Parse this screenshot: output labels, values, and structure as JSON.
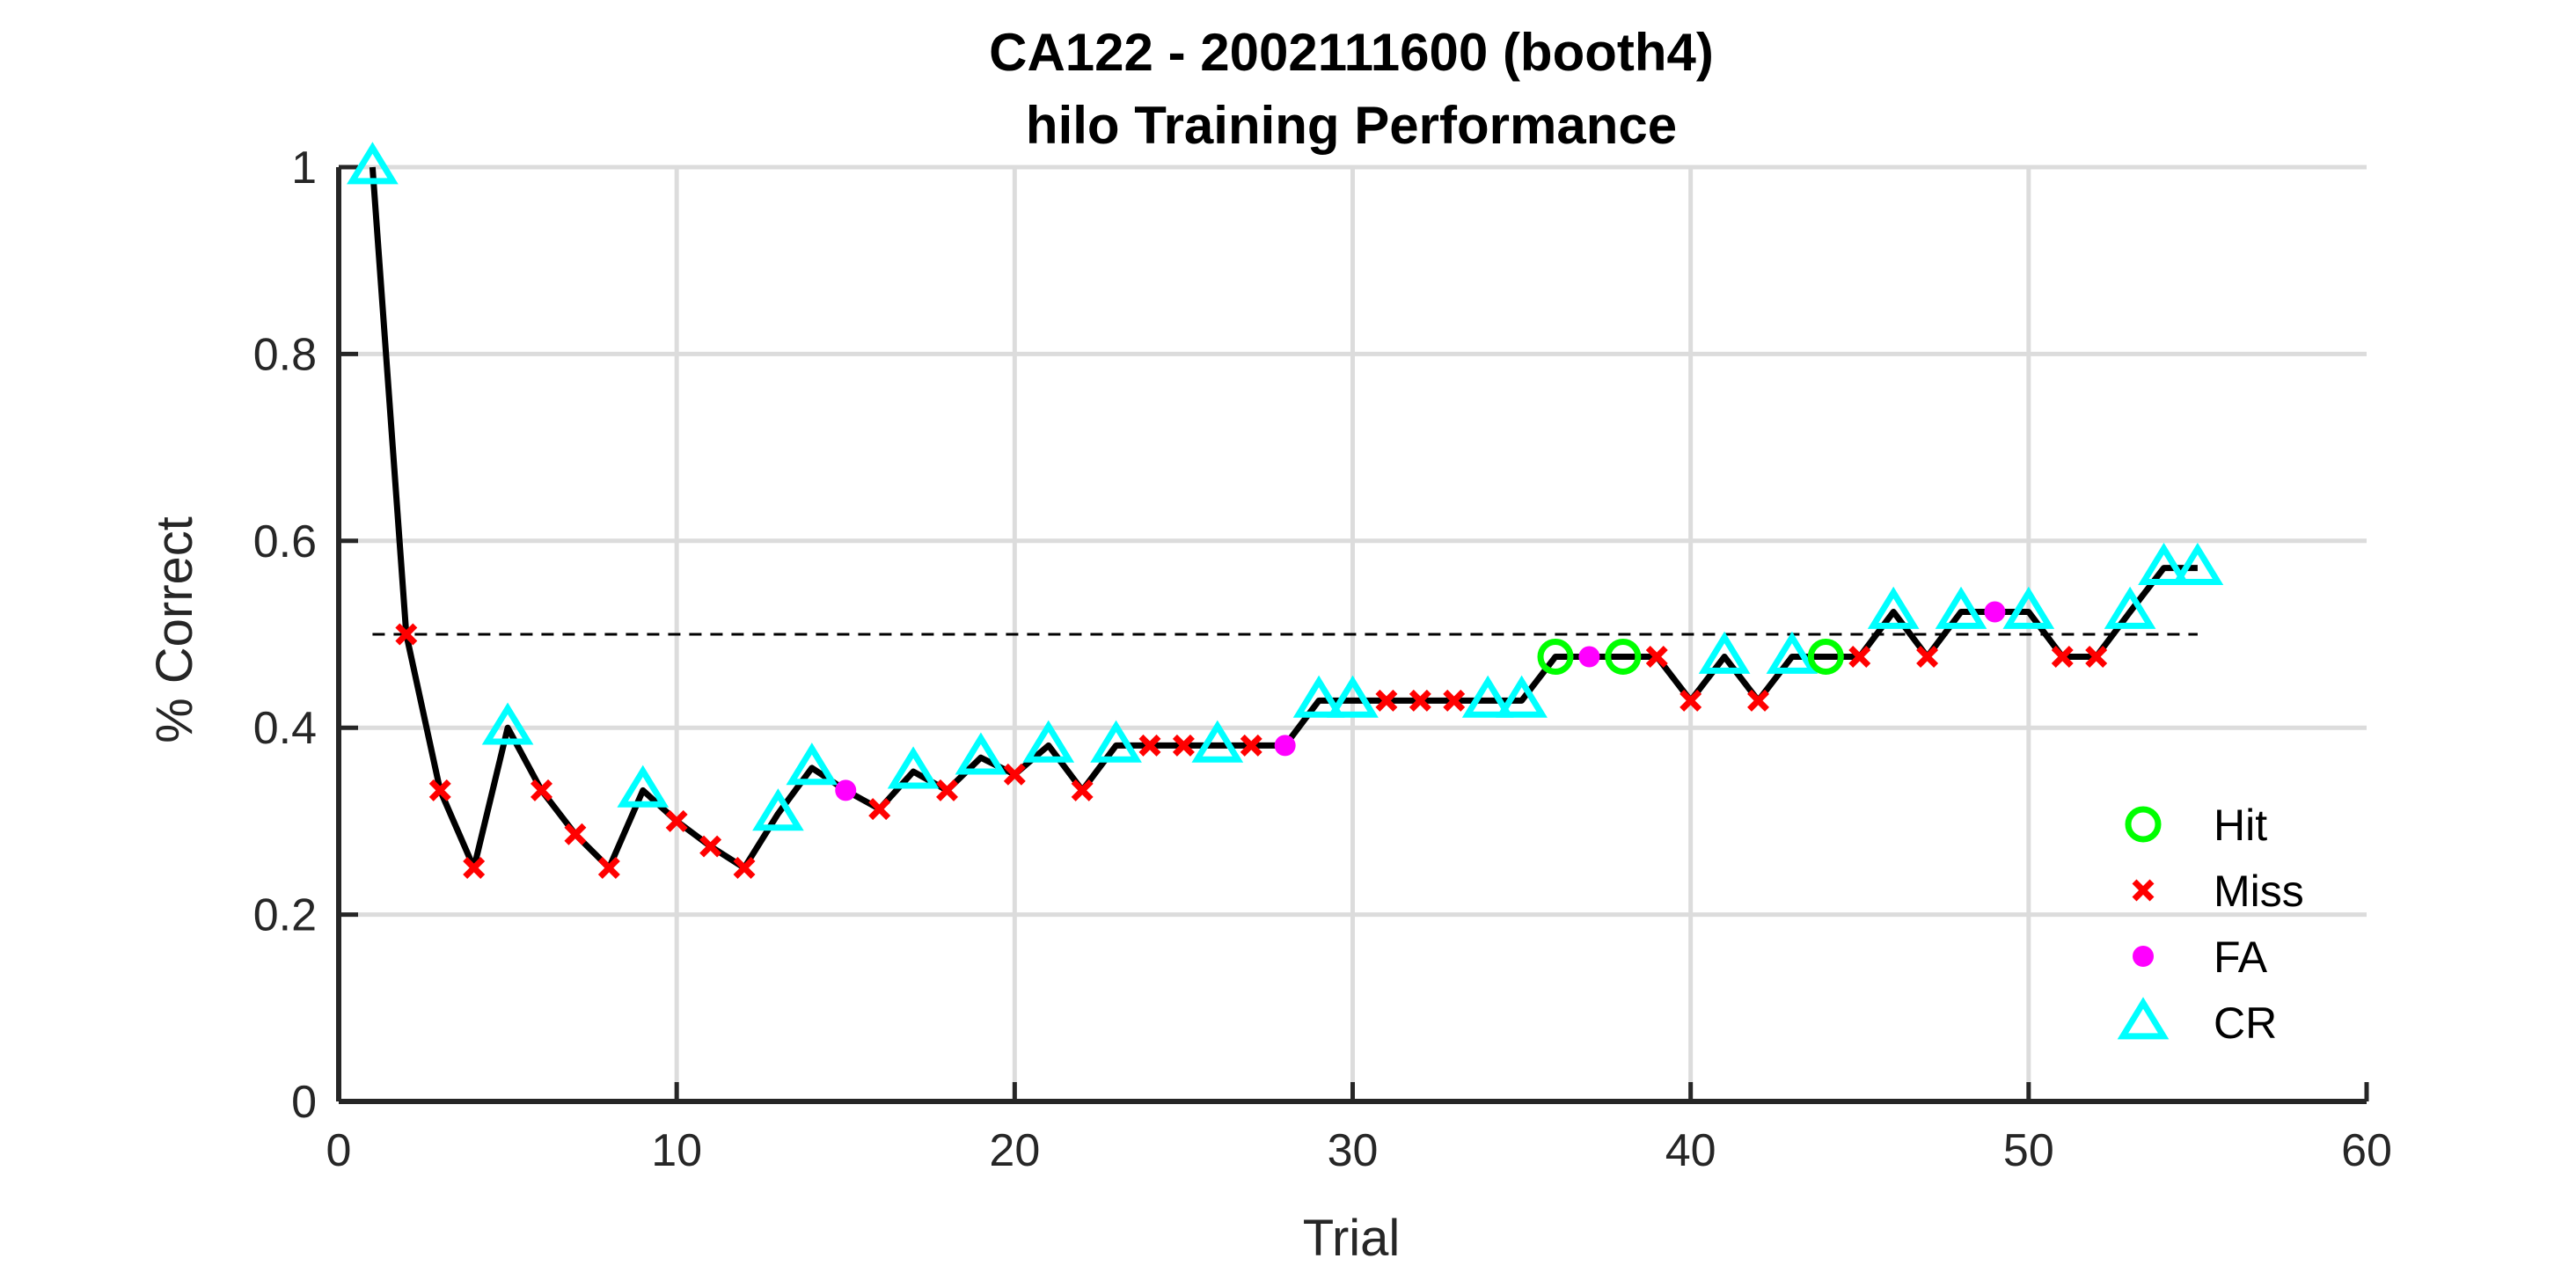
{
  "chart_data": {
    "type": "line",
    "title": "CA122 - 2002111600 (booth4)",
    "subtitle": "hilo Training Performance",
    "xlabel": "Trial",
    "ylabel": "% Correct",
    "xlim": [
      0,
      60
    ],
    "ylim": [
      0,
      1
    ],
    "xticks": [
      "0",
      "10",
      "20",
      "30",
      "40",
      "50",
      "60"
    ],
    "yticks": [
      "0",
      "0.2",
      "0.4",
      "0.6",
      "0.8",
      "1"
    ],
    "grid": true,
    "legend_position": "bottom-right",
    "reference_line": {
      "y": 0.5,
      "x_range": [
        1,
        55
      ],
      "style": "dashed"
    },
    "x": [
      1,
      2,
      3,
      4,
      5,
      6,
      7,
      8,
      9,
      10,
      11,
      12,
      13,
      14,
      15,
      16,
      17,
      18,
      19,
      20,
      21,
      22,
      23,
      24,
      25,
      26,
      27,
      28,
      29,
      30,
      31,
      32,
      33,
      34,
      35,
      36,
      37,
      38,
      39,
      40,
      41,
      42,
      43,
      44,
      45,
      46,
      47,
      48,
      49,
      50,
      51,
      52,
      53,
      54,
      55
    ],
    "y": [
      1,
      0.5,
      0.333,
      0.25,
      0.4,
      0.333,
      0.286,
      0.25,
      0.333,
      0.3,
      0.273,
      0.25,
      0.308,
      0.357,
      0.333,
      0.313,
      0.353,
      0.333,
      0.368,
      0.35,
      0.381,
      0.333,
      0.381,
      0.381,
      0.381,
      0.381,
      0.381,
      0.381,
      0.429,
      0.429,
      0.429,
      0.429,
      0.429,
      0.429,
      0.429,
      0.476,
      0.476,
      0.476,
      0.476,
      0.429,
      0.476,
      0.429,
      0.476,
      0.476,
      0.476,
      0.524,
      0.476,
      0.524,
      0.524,
      0.524,
      0.476,
      0.476,
      0.524,
      0.571,
      0.571
    ],
    "outcomes": [
      "CR",
      "Miss",
      "Miss",
      "Miss",
      "CR",
      "Miss",
      "Miss",
      "Miss",
      "CR",
      "Miss",
      "Miss",
      "Miss",
      "CR",
      "CR",
      "FA",
      "Miss",
      "CR",
      "Miss",
      "CR",
      "Miss",
      "CR",
      "Miss",
      "CR",
      "Miss",
      "Miss",
      "CR",
      "Miss",
      "FA",
      "CR",
      "CR",
      "Miss",
      "Miss",
      "Miss",
      "CR",
      "CR",
      "Hit",
      "FA",
      "Hit",
      "Miss",
      "Miss",
      "CR",
      "Miss",
      "CR",
      "Hit",
      "Miss",
      "CR",
      "Miss",
      "CR",
      "FA",
      "CR",
      "Miss",
      "Miss",
      "CR",
      "CR",
      "CR"
    ],
    "series": [
      {
        "name": "Hit",
        "color": "#00ff00",
        "marker": "circle-open"
      },
      {
        "name": "Miss",
        "color": "#ff0000",
        "marker": "x"
      },
      {
        "name": "FA",
        "color": "#ff00ff",
        "marker": "circle-filled"
      },
      {
        "name": "CR",
        "color": "#00ffff",
        "marker": "triangle-open"
      }
    ]
  }
}
